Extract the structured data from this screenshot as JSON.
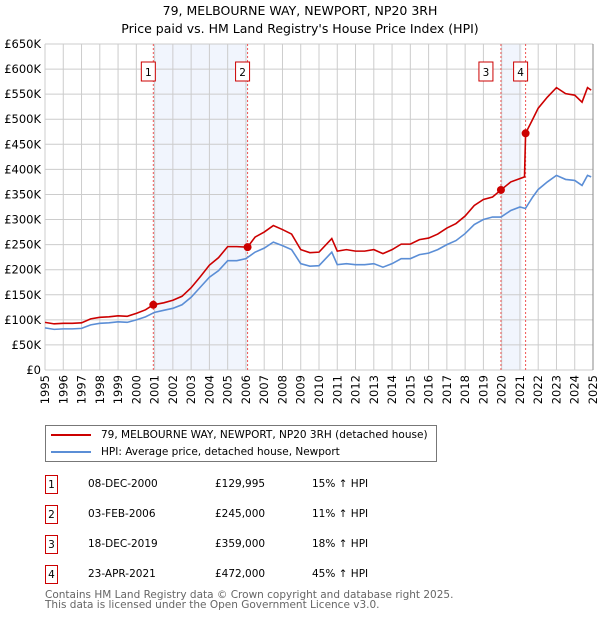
{
  "chart_data": {
    "type": "line",
    "title": "79, MELBOURNE WAY, NEWPORT, NP20 3RH",
    "subtitle": "Price paid vs. HM Land Registry's House Price Index (HPI)",
    "xlim": [
      1995,
      2025
    ],
    "ylim": [
      0,
      650000
    ],
    "y_ticks": [
      {
        "v": 0,
        "l": "£0"
      },
      {
        "v": 50000,
        "l": "£50K"
      },
      {
        "v": 100000,
        "l": "£100K"
      },
      {
        "v": 150000,
        "l": "£150K"
      },
      {
        "v": 200000,
        "l": "£200K"
      },
      {
        "v": 250000,
        "l": "£250K"
      },
      {
        "v": 300000,
        "l": "£300K"
      },
      {
        "v": 350000,
        "l": "£350K"
      },
      {
        "v": 400000,
        "l": "£400K"
      },
      {
        "v": 450000,
        "l": "£450K"
      },
      {
        "v": 500000,
        "l": "£500K"
      },
      {
        "v": 550000,
        "l": "£550K"
      },
      {
        "v": 600000,
        "l": "£600K"
      },
      {
        "v": 650000,
        "l": "£650K"
      }
    ],
    "x_ticks": [
      "1995",
      "1996",
      "1997",
      "1998",
      "1999",
      "2000",
      "2001",
      "2002",
      "2003",
      "2004",
      "2005",
      "2006",
      "2007",
      "2008",
      "2009",
      "2010",
      "2011",
      "2012",
      "2013",
      "2014",
      "2015",
      "2016",
      "2017",
      "2018",
      "2019",
      "2020",
      "2021",
      "2022",
      "2023",
      "2024",
      "2025"
    ],
    "grid": true,
    "series": [
      {
        "name": "79, MELBOURNE WAY, NEWPORT, NP20 3RH (detached house)",
        "color": "#cc0000",
        "x": [
          1995,
          1995.5,
          1996,
          1996.5,
          1997,
          1997.5,
          1998,
          1998.5,
          1999,
          1999.5,
          2000,
          2000.5,
          2000.93,
          2001.5,
          2002,
          2002.5,
          2003,
          2003.5,
          2004,
          2004.5,
          2005,
          2005.5,
          2006.09,
          2006.5,
          2007,
          2007.5,
          2008,
          2008.5,
          2009,
          2009.5,
          2010,
          2010.7,
          2011,
          2011.5,
          2012,
          2012.5,
          2013,
          2013.5,
          2014,
          2014.5,
          2015,
          2015.5,
          2016,
          2016.5,
          2017,
          2017.5,
          2018,
          2018.5,
          2019,
          2019.5,
          2019.96,
          2020.5,
          2021.25,
          2021.31,
          2021.7,
          2022,
          2022.5,
          2023,
          2023.5,
          2024,
          2024.4,
          2024.7,
          2024.9
        ],
        "y": [
          95,
          92,
          93,
          93,
          94,
          102,
          105,
          106,
          108,
          107,
          113,
          120,
          130,
          134,
          139,
          147,
          164,
          186,
          209,
          224,
          246,
          246,
          245,
          265,
          275,
          288,
          280,
          271,
          240,
          234,
          235,
          262,
          237,
          240,
          237,
          237,
          240,
          232,
          240,
          251,
          251,
          260,
          263,
          271,
          283,
          292,
          307,
          328,
          340,
          345,
          359,
          375,
          385,
          472,
          500,
          522,
          544,
          563,
          551,
          548,
          534,
          563,
          558
        ]
      },
      {
        "name": "HPI: Average price, detached house, Newport",
        "color": "#5b8ed6",
        "x": [
          1995,
          1995.5,
          1996,
          1996.5,
          1997,
          1997.5,
          1998,
          1998.5,
          1999,
          1999.5,
          2000,
          2000.5,
          2001,
          2001.5,
          2002,
          2002.5,
          2003,
          2003.5,
          2004,
          2004.5,
          2005,
          2005.5,
          2006,
          2006.5,
          2007,
          2007.5,
          2008,
          2008.5,
          2009,
          2009.5,
          2010,
          2010.7,
          2011,
          2011.5,
          2012,
          2012.5,
          2013,
          2013.5,
          2014,
          2014.5,
          2015,
          2015.5,
          2016,
          2016.5,
          2017,
          2017.5,
          2018,
          2018.5,
          2019,
          2019.5,
          2019.96,
          2020.5,
          2021,
          2021.3,
          2021.7,
          2022,
          2022.5,
          2023,
          2023.5,
          2024,
          2024.4,
          2024.7,
          2024.9
        ],
        "y": [
          84,
          81,
          82,
          82,
          83,
          90,
          93,
          94,
          96,
          95,
          100,
          106,
          115,
          119,
          123,
          130,
          145,
          165,
          185,
          198,
          218,
          218,
          222,
          235,
          243,
          255,
          248,
          240,
          212,
          207,
          208,
          235,
          210,
          212,
          210,
          210,
          212,
          205,
          212,
          222,
          222,
          230,
          233,
          240,
          250,
          258,
          272,
          290,
          300,
          305,
          305,
          318,
          325,
          322,
          345,
          360,
          375,
          388,
          380,
          378,
          368,
          388,
          385
        ]
      }
    ],
    "y_unit": "thousand GBP",
    "sales": [
      {
        "n": "1",
        "x": 2000.93,
        "y": 129995,
        "date": "08-DEC-2000",
        "price": "£129,995",
        "hpi": "15% ↑ HPI"
      },
      {
        "n": "2",
        "x": 2006.09,
        "y": 245000,
        "date": "03-FEB-2006",
        "price": "£245,000",
        "hpi": "11% ↑ HPI"
      },
      {
        "n": "3",
        "x": 2019.96,
        "y": 359000,
        "date": "18-DEC-2019",
        "price": "£359,000",
        "hpi": "18% ↑ HPI"
      },
      {
        "n": "4",
        "x": 2021.31,
        "y": 472000,
        "date": "23-APR-2021",
        "price": "£472,000",
        "hpi": "45% ↑ HPI"
      }
    ],
    "shaded": [
      [
        2000.93,
        2006.09
      ],
      [
        2019.96,
        2021.1
      ]
    ]
  },
  "footer": {
    "line1": "Contains HM Land Registry data © Crown copyright and database right 2025.",
    "line2": "This data is licensed under the Open Government Licence v3.0."
  }
}
